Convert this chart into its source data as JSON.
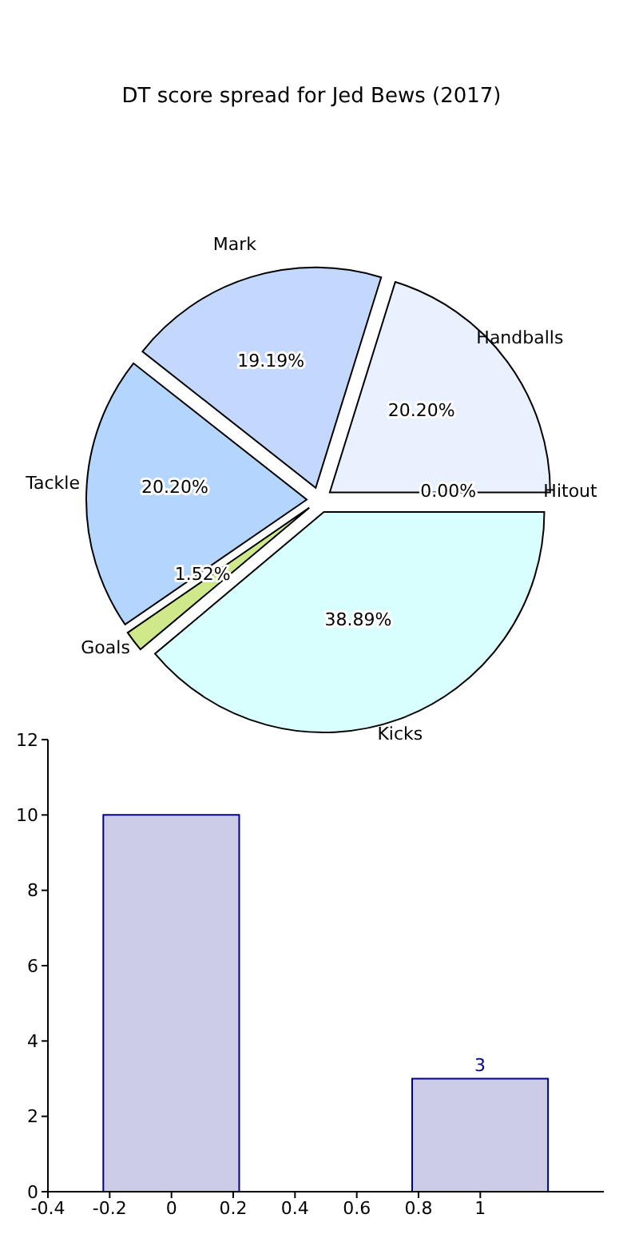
{
  "chart_data": [
    {
      "type": "pie",
      "title": "DT score spread for Jed Bews (2017)",
      "categories": [
        "Handballs",
        "Mark",
        "Tackle",
        "Goals",
        "Kicks",
        "Hitout"
      ],
      "values": [
        20.2,
        19.19,
        20.2,
        1.52,
        38.89,
        0.0
      ],
      "colors": [
        "#eaf1fe",
        "#c4d8fe",
        "#b4d6fe",
        "#cfe98a",
        "#d9fefe",
        "#dddddd"
      ],
      "value_labels": [
        "20.20%",
        "19.19%",
        "20.20%",
        "1.52%",
        "38.89%",
        "0.00%"
      ]
    },
    {
      "type": "bar",
      "x": [
        0,
        1
      ],
      "values": [
        10,
        3
      ],
      "color": "#cccce6",
      "value_labels": [
        null,
        "3"
      ],
      "xlim": [
        -0.4,
        1.4
      ],
      "xticks": [
        -0.4,
        -0.2,
        0.0,
        0.2,
        0.4,
        0.6,
        0.8,
        1.0
      ],
      "ylim": [
        0,
        12
      ],
      "yticks": [
        0,
        2,
        4,
        6,
        8,
        10,
        12
      ]
    }
  ]
}
